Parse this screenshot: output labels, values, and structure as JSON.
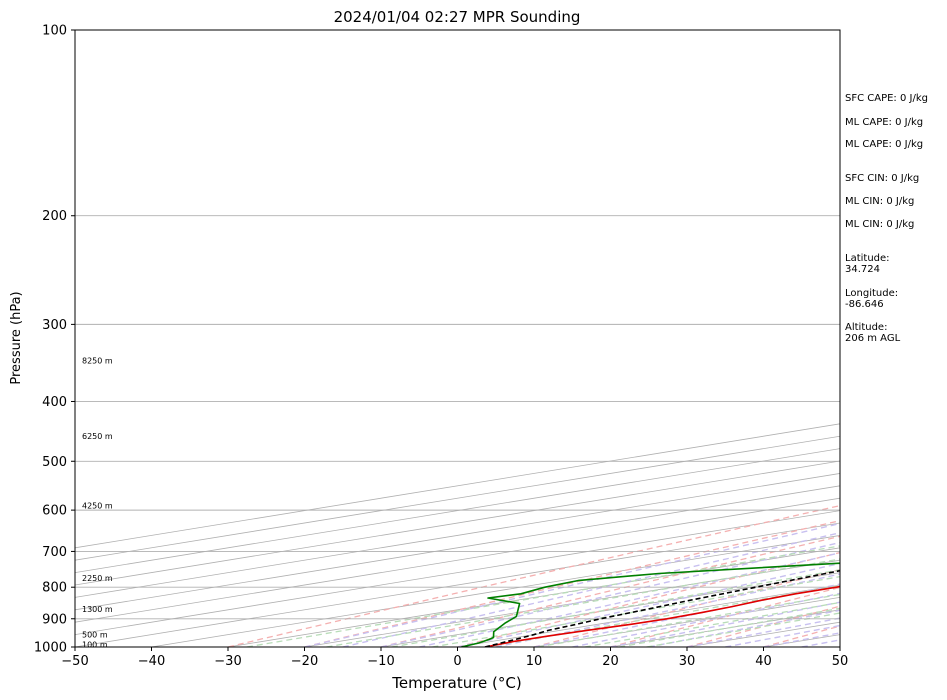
{
  "chart_data": {
    "type": "line",
    "title": "2024/01/04 02:27 MPR Sounding",
    "xlabel": "Temperature (°C)",
    "ylabel": "Pressure (hPa)",
    "xlim": [
      -50,
      50
    ],
    "ylim": [
      1000,
      100
    ],
    "y_scale": "log",
    "x_ticks": [
      "−50",
      "−40",
      "−30",
      "−20",
      "−10",
      "0",
      "10",
      "20",
      "30",
      "40",
      "50"
    ],
    "y_ticks": [
      "100",
      "200",
      "300",
      "400",
      "500",
      "600",
      "700",
      "800",
      "900",
      "1000"
    ],
    "grid": true,
    "height_labels": [
      {
        "text": "100 m",
        "p": 990
      },
      {
        "text": "500 m",
        "p": 955
      },
      {
        "text": "1300 m",
        "p": 867
      },
      {
        "text": "2250 m",
        "p": 773
      },
      {
        "text": "4250 m",
        "p": 590
      },
      {
        "text": "6250 m",
        "p": 455
      },
      {
        "text": "8250 m",
        "p": 343
      }
    ],
    "series": [
      {
        "color": "#e00000",
        "style": "solid",
        "points": [
          [
            3.6,
            1000
          ],
          [
            2.9,
            980
          ],
          [
            3.0,
            960
          ],
          [
            3.5,
            940
          ],
          [
            4.3,
            920
          ],
          [
            4.6,
            900
          ],
          [
            4.2,
            880
          ],
          [
            3.3,
            860
          ],
          [
            2.0,
            840
          ],
          [
            1.3,
            820
          ],
          [
            1.3,
            800
          ],
          [
            0.4,
            780
          ],
          [
            -1.2,
            760
          ],
          [
            -3.0,
            740
          ],
          [
            -4.5,
            720
          ],
          [
            -5.7,
            700
          ],
          [
            -6.8,
            680
          ],
          [
            -8.4,
            660
          ],
          [
            -9.9,
            630
          ],
          [
            -11.4,
            600
          ],
          [
            -12.9,
            570
          ],
          [
            -14.4,
            540
          ],
          [
            -15.9,
            510
          ],
          [
            -17.4,
            480
          ],
          [
            -19.0,
            450
          ],
          [
            -20.7,
            420
          ],
          [
            -22.4,
            390
          ],
          [
            -24.2,
            360
          ],
          [
            -26.1,
            330
          ],
          [
            -28.1,
            300
          ],
          [
            -30.2,
            280
          ],
          [
            -31.8,
            270
          ],
          [
            -33.5,
            260
          ]
        ]
      },
      {
        "color": "#007f00",
        "style": "solid",
        "points": [
          [
            0.5,
            1000
          ],
          [
            -0.5,
            985
          ],
          [
            -2.0,
            972
          ],
          [
            -3.0,
            965
          ],
          [
            -7.5,
            945
          ],
          [
            -13.0,
            915
          ],
          [
            -17.0,
            892
          ],
          [
            -27.0,
            850
          ],
          [
            -34.0,
            836
          ],
          [
            -35.5,
            833
          ],
          [
            -34.6,
            820
          ],
          [
            -36.8,
            800
          ],
          [
            -37.8,
            780
          ],
          [
            -33.0,
            760
          ],
          [
            -17.0,
            730
          ],
          [
            -15.0,
            710
          ],
          [
            -9.8,
            680
          ],
          [
            -8.2,
            665
          ],
          [
            -10.6,
            635
          ],
          [
            -11.7,
            610
          ],
          [
            -13.3,
            580
          ],
          [
            -14.4,
            560
          ],
          [
            -15.9,
            530
          ],
          [
            -17.6,
            500
          ],
          [
            -19.4,
            470
          ],
          [
            -21.1,
            440
          ],
          [
            -22.6,
            420
          ],
          [
            -24.0,
            400
          ],
          [
            -25.9,
            375
          ],
          [
            -27.3,
            360
          ],
          [
            -30.0,
            350
          ],
          [
            -33.6,
            340
          ],
          [
            -34.0,
            330
          ],
          [
            -32.7,
            320
          ],
          [
            -33.5,
            310
          ],
          [
            -37.0,
            300
          ],
          [
            -39.2,
            295
          ],
          [
            -49.0,
            285
          ],
          [
            -71.0,
            279
          ]
        ]
      },
      {
        "color": "#000000",
        "style": "dashed",
        "points": [
          [
            3.6,
            1000
          ],
          [
            1.3,
            970
          ],
          [
            0.0,
            955
          ],
          [
            -1.5,
            940
          ],
          [
            -2.7,
            920
          ],
          [
            -4.1,
            900
          ],
          [
            -5.6,
            870
          ],
          [
            -7.3,
            840
          ],
          [
            -9.2,
            800
          ],
          [
            -11.2,
            760
          ],
          [
            -12.9,
            720
          ],
          [
            -14.6,
            680
          ],
          [
            -16.5,
            640
          ],
          [
            -18.4,
            600
          ],
          [
            -20.6,
            560
          ],
          [
            -22.9,
            520
          ],
          [
            -25.6,
            480
          ],
          [
            -28.6,
            440
          ],
          [
            -32.1,
            400
          ],
          [
            -36.1,
            360
          ],
          [
            -41.5,
            320
          ],
          [
            -44.7,
            300
          ],
          [
            -52.0,
            270
          ]
        ]
      }
    ]
  },
  "info_panel": {
    "sfc_cape": "SFC CAPE: 0 J/kg",
    "ml_cape_1": "ML CAPE: 0 J/kg",
    "ml_cape_2": "ML CAPE: 0 J/kg",
    "sfc_cin": "SFC CIN: 0 J/kg",
    "ml_cin_1": "ML CIN: 0 J/kg",
    "ml_cin_2": "ML CIN: 0 J/kg",
    "latitude": "Latitude:\n34.724",
    "longitude": "Longitude:\n-86.646",
    "altitude": "Altitude:\n206 m AGL"
  }
}
